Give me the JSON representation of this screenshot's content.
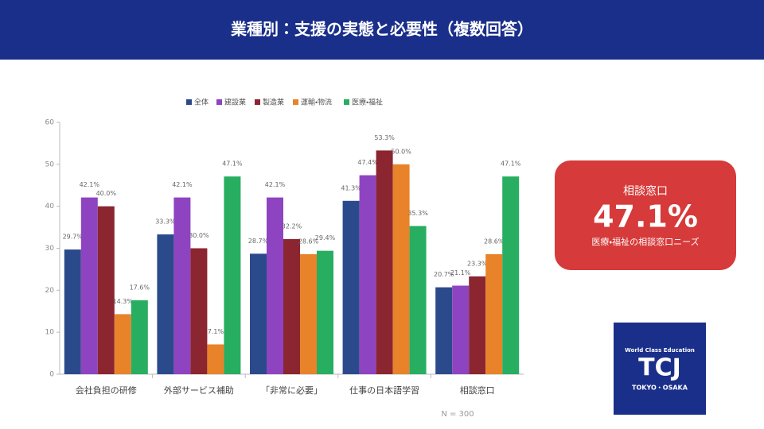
{
  "header": {
    "title": "業種別：支援の実態と必要性（複数回答）"
  },
  "chart_data": {
    "type": "bar",
    "categories": [
      "会社負担の研修",
      "外部サービス補助",
      "「非常に必要」",
      "仕事の日本語学習",
      "相談窓口"
    ],
    "series": [
      {
        "name": "全体",
        "color": "#2b4a8b",
        "values": [
          29.7,
          33.3,
          28.7,
          41.3,
          20.7
        ],
        "value_labels": [
          "29.7%",
          "33.3%",
          "28.7%",
          "41.3%",
          "20.7%"
        ]
      },
      {
        "name": "建設業",
        "color": "#8e44c0",
        "values": [
          42.1,
          42.1,
          42.1,
          47.4,
          21.1
        ],
        "value_labels": [
          "42.1%",
          "42.1%",
          "42.1%",
          "47.4%",
          "21.1%"
        ]
      },
      {
        "name": "製造業",
        "color": "#8b2530",
        "values": [
          40.0,
          30.0,
          32.2,
          53.3,
          23.3
        ],
        "value_labels": [
          "40.0%",
          "30.0%",
          "32.2%",
          "53.3%",
          "23.3%"
        ]
      },
      {
        "name": "運輸・物流",
        "color": "#e8832a",
        "values": [
          14.3,
          7.1,
          28.6,
          50.0,
          28.6
        ],
        "value_labels": [
          "14.3%",
          "7.1%",
          "28.6%",
          "50.0%",
          "28.6%"
        ]
      },
      {
        "name": "医療・福祉",
        "color": "#27ae60",
        "values": [
          17.6,
          47.1,
          29.4,
          35.3,
          47.1
        ],
        "value_labels": [
          "17.6%",
          "47.1%",
          "29.4%",
          "35.3%",
          "47.1%"
        ]
      }
    ],
    "ylim": [
      0,
      60
    ],
    "yticks": [
      0,
      10,
      20,
      30,
      40,
      50,
      60
    ],
    "grid": false,
    "legend": "top",
    "note": "N = 300"
  },
  "callout": {
    "label": "相談窓口",
    "value": "47.1%",
    "caption": "医療・福祉の相談窓口ニーズ"
  },
  "logo": {
    "tagline": "World Class Education",
    "name": "TCJ",
    "location": "TOKYO・OSAKA"
  }
}
